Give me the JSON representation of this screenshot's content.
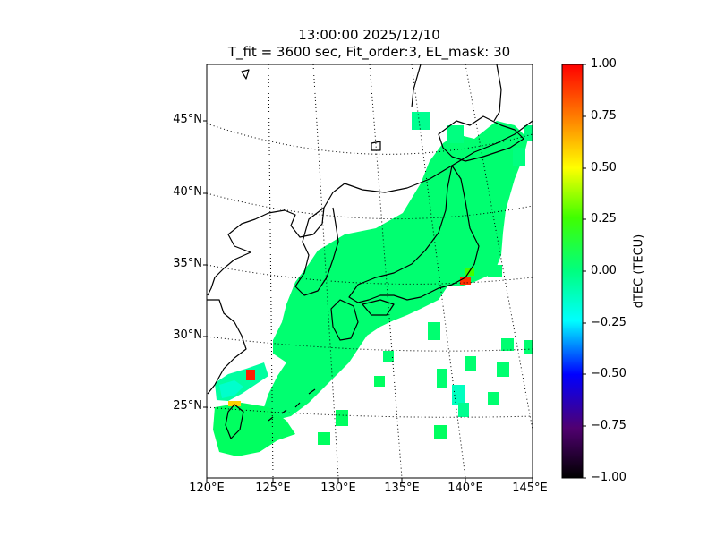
{
  "title": {
    "line1": "13:00:00 2025/12/10",
    "line2": "T_fit = 3600 sec, Fit_order:3, EL_mask: 30"
  },
  "map": {
    "lon_range": [
      120,
      145
    ],
    "lat_range": [
      20,
      49
    ],
    "lat_labels": [
      "25°N",
      "30°N",
      "35°N",
      "40°N",
      "45°N"
    ],
    "lon_labels": [
      "120°E",
      "125°E",
      "130°E",
      "135°E",
      "140°E",
      "145°E"
    ],
    "gridlines": "dotted",
    "coastline_color": "#000000"
  },
  "colorbar": {
    "label": "dTEC (TECU)",
    "range": [
      -1.0,
      1.0
    ],
    "ticks": [
      "1.00",
      "0.75",
      "0.50",
      "0.25",
      "0.00",
      "−0.25",
      "−0.50",
      "−0.75",
      "−1.00"
    ],
    "colors": [
      "#000000",
      "#500070",
      "#0000ff",
      "#00ffff",
      "#00ff80",
      "#40ff00",
      "#ffff00",
      "#ff8000",
      "#ff0000"
    ]
  }
}
